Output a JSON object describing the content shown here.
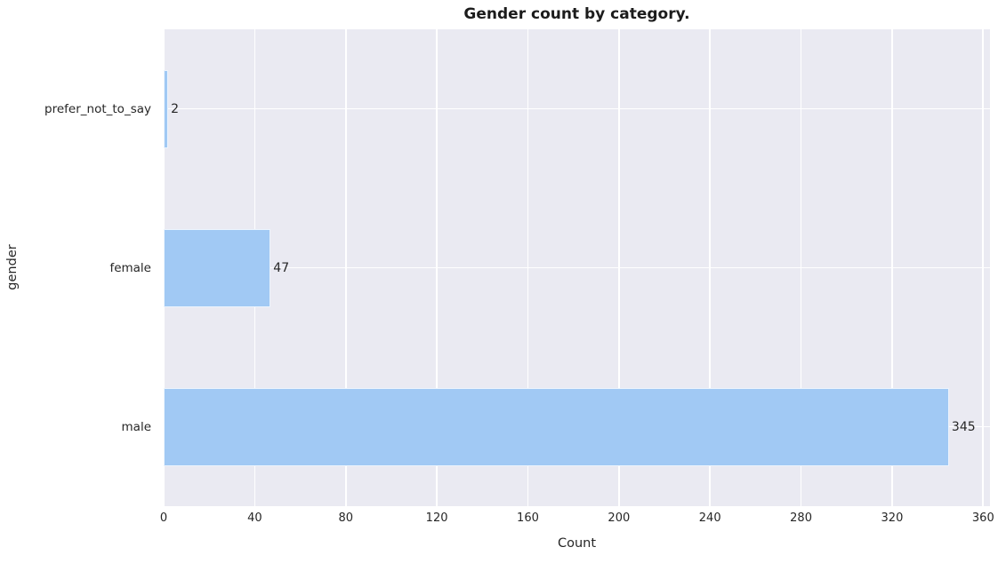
{
  "chart_data": {
    "type": "bar",
    "orientation": "horizontal",
    "title": "Gender count by category.",
    "xlabel": "Count",
    "ylabel": "gender",
    "categories": [
      "prefer_not_to_say",
      "female",
      "male"
    ],
    "values": [
      2,
      47,
      345
    ],
    "bar_value_labels": [
      "2",
      "47",
      "345"
    ],
    "x_ticks": [
      0,
      40,
      80,
      120,
      160,
      200,
      240,
      280,
      320,
      360
    ],
    "xlim": [
      0,
      363
    ],
    "grid": true,
    "legend": false,
    "style": "seaborn-darkgrid",
    "colors": {
      "bar": "#a1c9f4",
      "plot_background": "#eaeaf2",
      "figure_background": "#ffffff",
      "gridline": "#ffffff",
      "text": "#262626",
      "title_text": "#1c1c1c"
    }
  }
}
